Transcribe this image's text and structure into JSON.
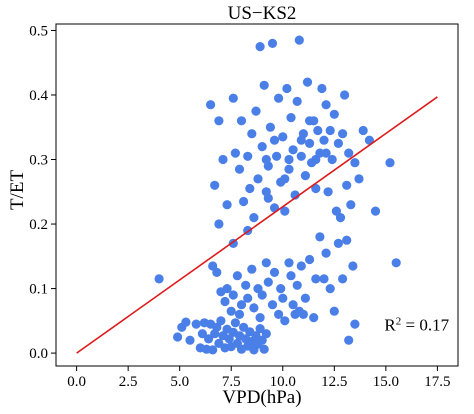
{
  "chart_data": {
    "type": "scatter",
    "title": "US−KS2",
    "xlabel": "VPD(hPa)",
    "ylabel": "T/ET",
    "xlim": [
      -1.0,
      18.5
    ],
    "ylim": [
      -0.02,
      0.51
    ],
    "xticks": [
      "0.0",
      "2.5",
      "5.0",
      "7.5",
      "10.0",
      "12.5",
      "15.0",
      "17.5"
    ],
    "xtick_values": [
      0.0,
      2.5,
      5.0,
      7.5,
      10.0,
      12.5,
      15.0,
      17.5
    ],
    "yticks": [
      "0.0",
      "0.1",
      "0.2",
      "0.3",
      "0.4",
      "0.5"
    ],
    "ytick_values": [
      0.0,
      0.1,
      0.2,
      0.3,
      0.4,
      0.5
    ],
    "grid": false,
    "annotation": {
      "base": "R",
      "sup": "2",
      "rest": " = 0.17",
      "x": 16.5,
      "y": 0.035
    },
    "point_color": "#4a7fe8",
    "line_color": "#e01a1a",
    "fit_line": {
      "x": [
        0.0,
        17.5
      ],
      "y": [
        0.0,
        0.397
      ]
    },
    "points": [
      [
        4.0,
        0.115
      ],
      [
        4.9,
        0.025
      ],
      [
        5.1,
        0.04
      ],
      [
        5.3,
        0.048
      ],
      [
        5.5,
        0.02
      ],
      [
        5.8,
        0.045
      ],
      [
        6.0,
        0.008
      ],
      [
        6.1,
        0.03
      ],
      [
        6.2,
        0.047
      ],
      [
        6.3,
        0.006
      ],
      [
        6.4,
        0.022
      ],
      [
        6.5,
        0.045
      ],
      [
        6.6,
        0.005
      ],
      [
        6.7,
        0.03
      ],
      [
        6.8,
        0.04
      ],
      [
        6.9,
        0.015
      ],
      [
        7.0,
        0.05
      ],
      [
        7.1,
        0.027
      ],
      [
        7.2,
        0.008
      ],
      [
        7.3,
        0.037
      ],
      [
        7.4,
        0.022
      ],
      [
        7.5,
        0.01
      ],
      [
        7.6,
        0.032
      ],
      [
        7.7,
        0.047
      ],
      [
        7.8,
        0.015
      ],
      [
        7.9,
        0.027
      ],
      [
        8.0,
        0.006
      ],
      [
        8.1,
        0.04
      ],
      [
        8.2,
        0.022
      ],
      [
        8.3,
        0.011
      ],
      [
        8.4,
        0.033
      ],
      [
        8.5,
        0.018
      ],
      [
        8.6,
        0.005
      ],
      [
        8.7,
        0.027
      ],
      [
        8.8,
        0.014
      ],
      [
        8.9,
        0.038
      ],
      [
        9.0,
        0.02
      ],
      [
        9.1,
        0.006
      ],
      [
        9.2,
        0.03
      ],
      [
        6.6,
        0.135
      ],
      [
        6.8,
        0.125
      ],
      [
        7.0,
        0.095
      ],
      [
        7.2,
        0.08
      ],
      [
        7.3,
        0.1
      ],
      [
        7.5,
        0.065
      ],
      [
        7.6,
        0.09
      ],
      [
        7.8,
        0.12
      ],
      [
        7.9,
        0.06
      ],
      [
        8.0,
        0.075
      ],
      [
        8.2,
        0.105
      ],
      [
        8.3,
        0.085
      ],
      [
        8.5,
        0.13
      ],
      [
        8.6,
        0.07
      ],
      [
        8.8,
        0.1
      ],
      [
        8.9,
        0.055
      ],
      [
        9.0,
        0.09
      ],
      [
        9.2,
        0.14
      ],
      [
        9.3,
        0.11
      ],
      [
        9.5,
        0.075
      ],
      [
        9.6,
        0.125
      ],
      [
        9.8,
        0.06
      ],
      [
        9.9,
        0.1
      ],
      [
        10.0,
        0.085
      ],
      [
        10.1,
        0.05
      ],
      [
        10.3,
        0.14
      ],
      [
        10.4,
        0.12
      ],
      [
        10.5,
        0.075
      ],
      [
        10.6,
        0.06
      ],
      [
        10.7,
        0.105
      ],
      [
        10.8,
        0.065
      ],
      [
        10.9,
        0.135
      ],
      [
        11.0,
        0.06
      ],
      [
        11.1,
        0.085
      ],
      [
        11.3,
        0.145
      ],
      [
        11.5,
        0.055
      ],
      [
        11.6,
        0.115
      ],
      [
        11.8,
        0.18
      ],
      [
        12.0,
        0.115
      ],
      [
        12.1,
        0.155
      ],
      [
        12.3,
        0.1
      ],
      [
        12.5,
        0.065
      ],
      [
        12.7,
        0.17
      ],
      [
        12.9,
        0.115
      ],
      [
        13.2,
        0.02
      ],
      [
        13.5,
        0.045
      ],
      [
        13.1,
        0.175
      ],
      [
        13.4,
        0.135
      ],
      [
        6.5,
        0.385
      ],
      [
        6.7,
        0.26
      ],
      [
        6.9,
        0.36
      ],
      [
        7.1,
        0.3
      ],
      [
        7.3,
        0.23
      ],
      [
        7.6,
        0.395
      ],
      [
        7.7,
        0.31
      ],
      [
        7.9,
        0.285
      ],
      [
        8.0,
        0.36
      ],
      [
        8.1,
        0.235
      ],
      [
        8.3,
        0.305
      ],
      [
        8.4,
        0.255
      ],
      [
        8.5,
        0.34
      ],
      [
        8.6,
        0.21
      ],
      [
        8.7,
        0.375
      ],
      [
        8.8,
        0.27
      ],
      [
        8.9,
        0.475
      ],
      [
        9.0,
        0.32
      ],
      [
        9.1,
        0.415
      ],
      [
        9.2,
        0.25
      ],
      [
        9.3,
        0.29
      ],
      [
        9.4,
        0.35
      ],
      [
        9.5,
        0.48
      ],
      [
        9.6,
        0.225
      ],
      [
        9.7,
        0.305
      ],
      [
        9.8,
        0.395
      ],
      [
        9.9,
        0.265
      ],
      [
        10.0,
        0.335
      ],
      [
        10.1,
        0.22
      ],
      [
        10.2,
        0.41
      ],
      [
        10.3,
        0.285
      ],
      [
        10.4,
        0.365
      ],
      [
        10.5,
        0.315
      ],
      [
        10.6,
        0.245
      ],
      [
        10.7,
        0.39
      ],
      [
        10.8,
        0.485
      ],
      [
        10.9,
        0.305
      ],
      [
        11.0,
        0.34
      ],
      [
        11.1,
        0.275
      ],
      [
        11.2,
        0.42
      ],
      [
        11.3,
        0.325
      ],
      [
        11.4,
        0.295
      ],
      [
        11.5,
        0.36
      ],
      [
        11.6,
        0.255
      ],
      [
        11.7,
        0.345
      ],
      [
        11.8,
        0.31
      ],
      [
        11.9,
        0.41
      ],
      [
        12.0,
        0.33
      ],
      [
        12.1,
        0.385
      ],
      [
        12.2,
        0.25
      ],
      [
        12.3,
        0.345
      ],
      [
        12.4,
        0.3
      ],
      [
        12.5,
        0.37
      ],
      [
        12.6,
        0.22
      ],
      [
        12.7,
        0.325
      ],
      [
        12.8,
        0.21
      ],
      [
        12.9,
        0.34
      ],
      [
        13.0,
        0.4
      ],
      [
        13.1,
        0.26
      ],
      [
        13.2,
        0.31
      ],
      [
        13.3,
        0.23
      ],
      [
        13.5,
        0.295
      ],
      [
        13.7,
        0.27
      ],
      [
        13.9,
        0.345
      ],
      [
        14.2,
        0.33
      ],
      [
        14.5,
        0.22
      ],
      [
        15.2,
        0.295
      ],
      [
        15.5,
        0.14
      ],
      [
        9.2,
        0.3
      ],
      [
        9.6,
        0.33
      ],
      [
        10.3,
        0.3
      ],
      [
        10.9,
        0.33
      ],
      [
        11.3,
        0.36
      ],
      [
        11.6,
        0.3
      ],
      [
        12.1,
        0.31
      ],
      [
        10.1,
        0.27
      ],
      [
        9.3,
        0.24
      ],
      [
        8.3,
        0.19
      ],
      [
        7.6,
        0.17
      ],
      [
        6.9,
        0.2
      ]
    ]
  }
}
